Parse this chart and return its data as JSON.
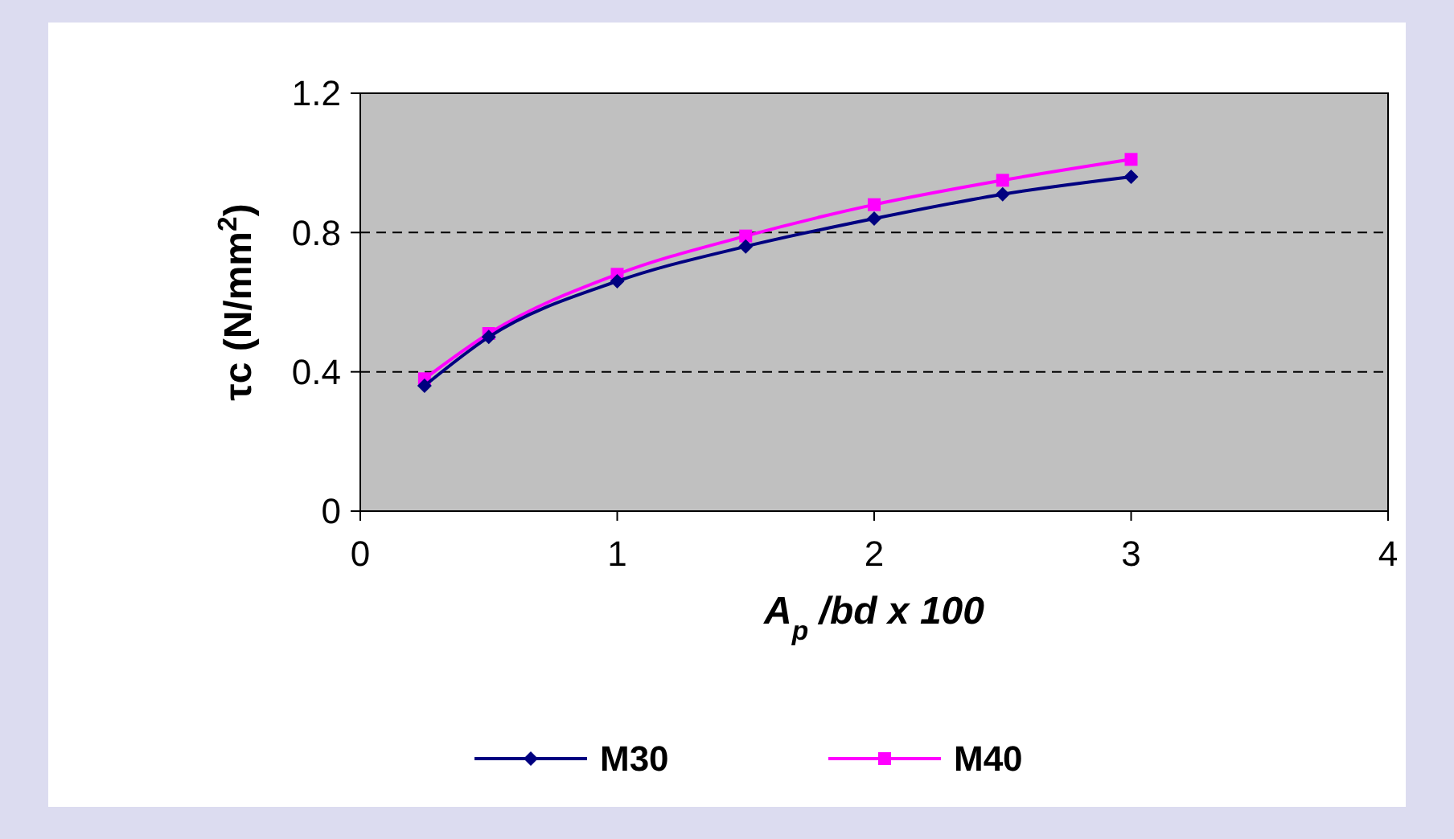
{
  "chart_data": {
    "type": "line",
    "xlabel": "A$_{p}$ /bd x 100",
    "ylabel": "τc (N/mm$^{2}$)",
    "x": [
      0.25,
      0.5,
      1,
      1.5,
      2,
      2.5,
      3
    ],
    "series": [
      {
        "name": "M30",
        "color": "#000080",
        "marker": "diamond",
        "values": [
          0.36,
          0.5,
          0.66,
          0.76,
          0.84,
          0.91,
          0.96
        ]
      },
      {
        "name": "M40",
        "color": "#ff00ff",
        "marker": "square",
        "values": [
          0.38,
          0.51,
          0.68,
          0.79,
          0.88,
          0.95,
          1.01
        ]
      }
    ],
    "xlim": [
      0,
      4
    ],
    "xticks": [
      0,
      1,
      2,
      3,
      4
    ],
    "ylim": [
      0,
      1.2
    ],
    "yticks": [
      0,
      0.4,
      0.8,
      1.2
    ],
    "grid": "y",
    "legend": "bottom"
  }
}
